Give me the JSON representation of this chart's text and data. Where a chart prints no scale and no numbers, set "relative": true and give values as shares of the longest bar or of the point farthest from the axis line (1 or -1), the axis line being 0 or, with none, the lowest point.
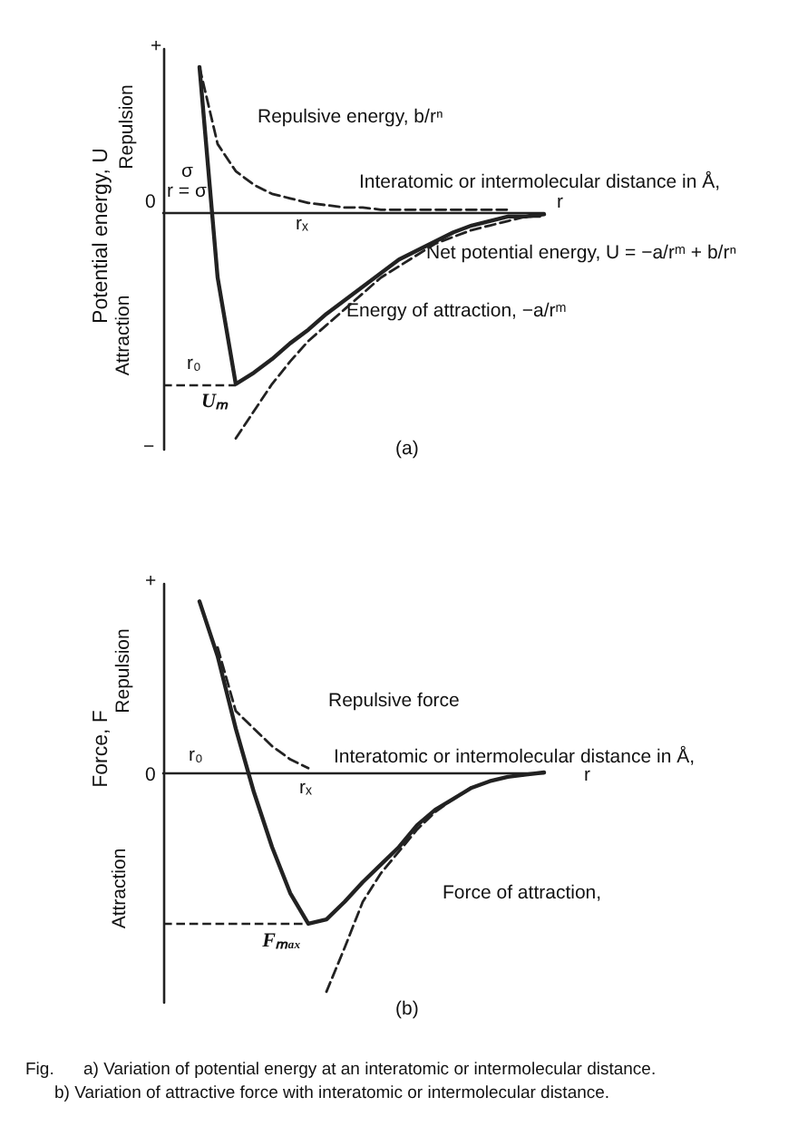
{
  "chart_data": [
    {
      "type": "line",
      "relative": true,
      "ylabel": "Potential energy, U",
      "xlabel": "Interatomic or intermolecular distance in Å,",
      "categories": [
        null,
        null,
        null,
        null,
        null,
        null,
        null,
        null,
        null,
        null,
        null,
        null,
        null,
        null,
        null,
        null,
        null,
        null,
        null,
        null,
        null,
        null
      ],
      "series": [
        {
          "color": "#222222",
          "line_style": "solid",
          "values": [
            null,
            null,
            0.64,
            -0.29,
            -0.76,
            -0.71,
            -0.65,
            -0.58,
            -0.52,
            -0.45,
            -0.39,
            -0.33,
            -0.27,
            -0.21,
            -0.17,
            -0.13,
            -0.09,
            -0.06,
            -0.04,
            -0.02,
            -0.02,
            -0.01
          ]
        },
        {
          "color": "#222222",
          "line_style": "dashed",
          "values": [
            null,
            null,
            0.64,
            0.3,
            0.18,
            0.12,
            0.08,
            0.06,
            0.04,
            0.03,
            0.02,
            0.02,
            0.01,
            0.01,
            0.01,
            0.01,
            0.01,
            0.01,
            0.01,
            0.01,
            null,
            null
          ]
        },
        {
          "color": "#222222",
          "line_style": "dashed",
          "values": [
            null,
            null,
            null,
            null,
            -1.0,
            -0.88,
            -0.76,
            -0.66,
            -0.57,
            -0.5,
            -0.43,
            -0.36,
            -0.29,
            -0.24,
            -0.19,
            -0.14,
            -0.11,
            -0.08,
            -0.06,
            -0.04,
            -0.02,
            -0.02
          ]
        }
      ],
      "ref_lines": [
        {
          "axis": "y",
          "value": -0.76,
          "label": "Uₘ",
          "line_style": "dashed"
        }
      ],
      "annotations": [
        "Repulsive energy, b/rⁿ",
        "Net potential energy, U = −a/rᵐ + b/rⁿ",
        "Energy of attraction, −a/rᵐ",
        "σ",
        "r = σ",
        "r₀",
        "rₓ",
        "r",
        "(a)",
        "+",
        "0",
        "−",
        "Repulsion",
        "Attraction"
      ]
    },
    {
      "type": "line",
      "relative": true,
      "ylabel": "Force, F",
      "xlabel": "Interatomic or intermolecular distance in Å,",
      "categories": [
        null,
        null,
        null,
        null,
        null,
        null,
        null,
        null,
        null,
        null,
        null,
        null,
        null,
        null,
        null,
        null,
        null,
        null,
        null,
        null,
        null,
        null
      ],
      "series": [
        {
          "color": "#222222",
          "line_style": "solid",
          "values": [
            null,
            null,
            0.78,
            0.53,
            0.2,
            -0.09,
            -0.34,
            -0.55,
            -0.69,
            -0.67,
            -0.59,
            -0.5,
            -0.42,
            -0.34,
            -0.24,
            -0.17,
            -0.12,
            -0.07,
            -0.04,
            -0.02,
            -0.01,
            0
          ]
        },
        {
          "color": "#222222",
          "line_style": "dashed",
          "values": [
            null,
            null,
            null,
            0.57,
            0.28,
            0.2,
            0.12,
            0.06,
            0.02,
            null,
            null,
            null,
            null,
            null,
            null,
            null,
            null,
            null,
            null,
            null,
            null,
            null
          ]
        },
        {
          "color": "#222222",
          "line_style": "dashed",
          "values": [
            null,
            null,
            null,
            null,
            null,
            null,
            null,
            null,
            null,
            -1.0,
            -0.8,
            -0.59,
            -0.46,
            -0.36,
            -0.26,
            -0.18,
            -0.12,
            -0.07,
            -0.04,
            -0.02,
            -0.01,
            null
          ]
        }
      ],
      "ref_lines": [
        {
          "axis": "y",
          "value": -0.69,
          "label": "Fₘₐₓ",
          "line_style": "dashed"
        }
      ],
      "annotations": [
        "Repulsive force",
        "Force of attraction,",
        "r₀",
        "rₓ",
        "r",
        "(b)",
        "+",
        "0",
        "Repulsion",
        "Attraction",
        "Fig.",
        "a) Variation of potential energy at an interatomic or intermolecular distance.",
        "b) Variation of attractive force with interatomic or intermolecular distance."
      ]
    }
  ]
}
